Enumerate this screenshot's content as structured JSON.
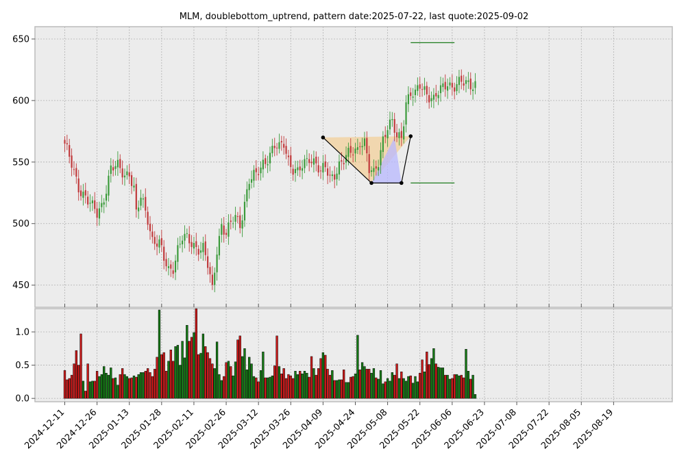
{
  "title": "MLM, doubblebottom_uptrend, pattern date:2025-07-22, last quote:2025-09-02",
  "chart_data": [
    {
      "type": "candlestick",
      "panel": "price",
      "title": "MLM, doublebottom_uptrend, pattern date:2025-07-22, last quote:2025-09-02",
      "ylim": [
        432,
        660
      ],
      "yticks": [
        450,
        500,
        550,
        600,
        650
      ],
      "grid": true,
      "x_tick_labels": [
        "2024-12-11",
        "2024-12-26",
        "2025-01-13",
        "2025-01-28",
        "2025-02-11",
        "2025-02-26",
        "2025-03-12",
        "2025-03-26",
        "2025-04-09",
        "2025-04-24",
        "2025-05-08",
        "2025-05-22",
        "2025-06-06",
        "2025-06-23",
        "2025-07-08",
        "2025-07-22",
        "2025-08-05",
        "2025-08-19"
      ],
      "anchor_closes": [
        [
          0,
          565
        ],
        [
          4,
          540
        ],
        [
          6,
          530
        ],
        [
          9,
          523
        ],
        [
          12,
          512
        ],
        [
          14,
          507
        ],
        [
          16,
          515
        ],
        [
          18,
          530
        ],
        [
          20,
          545
        ],
        [
          23,
          545
        ],
        [
          26,
          540
        ],
        [
          28,
          543
        ],
        [
          30,
          528
        ],
        [
          31,
          507
        ],
        [
          33,
          520
        ],
        [
          36,
          505
        ],
        [
          38,
          488
        ],
        [
          41,
          483
        ],
        [
          43,
          470
        ],
        [
          45,
          462
        ],
        [
          47,
          466
        ],
        [
          49,
          480
        ],
        [
          51,
          488
        ],
        [
          54,
          485
        ],
        [
          57,
          482
        ],
        [
          60,
          480
        ],
        [
          62,
          465
        ],
        [
          64,
          445
        ],
        [
          66,
          480
        ],
        [
          68,
          500
        ],
        [
          70,
          492
        ],
        [
          72,
          498
        ],
        [
          74,
          505
        ],
        [
          76,
          500
        ],
        [
          78,
          518
        ],
        [
          80,
          535
        ],
        [
          83,
          538
        ],
        [
          86,
          550
        ],
        [
          89,
          557
        ],
        [
          91,
          562
        ],
        [
          93,
          560
        ],
        [
          95,
          566
        ],
        [
          97,
          553
        ],
        [
          99,
          545
        ],
        [
          101,
          540
        ],
        [
          104,
          548
        ],
        [
          106,
          555
        ],
        [
          109,
          550
        ],
        [
          111,
          540
        ],
        [
          113,
          545
        ],
        [
          115,
          537
        ],
        [
          117,
          542
        ],
        [
          119,
          548
        ],
        [
          121,
          550
        ],
        [
          123,
          555
        ],
        [
          125,
          560
        ],
        [
          127,
          562
        ],
        [
          128,
          568
        ],
        [
          130,
          565
        ],
        [
          132,
          542
        ],
        [
          134,
          540
        ],
        [
          136,
          552
        ],
        [
          138,
          570
        ],
        [
          140,
          578
        ],
        [
          142,
          580
        ],
        [
          144,
          570
        ],
        [
          146,
          572
        ],
        [
          148,
          600
        ],
        [
          150,
          605
        ],
        [
          152,
          603
        ],
        [
          154,
          612
        ],
        [
          156,
          610
        ],
        [
          158,
          605
        ],
        [
          160,
          600
        ],
        [
          162,
          605
        ],
        [
          164,
          610
        ],
        [
          166,
          616
        ],
        [
          168,
          612
        ]
      ],
      "pattern": {
        "name": "doublebottom_uptrend",
        "points": [
          {
            "date_index": 112,
            "price": 570
          },
          {
            "date_index": 133,
            "price": 533
          },
          {
            "date_index": 146,
            "price": 533
          },
          {
            "date_index": 150,
            "price": 571
          }
        ],
        "levels": [
          647,
          533
        ]
      }
    },
    {
      "type": "bar",
      "panel": "volume",
      "ylim": [
        -0.05,
        1.35
      ],
      "yticks": [
        0.0,
        0.5,
        1.0
      ],
      "grid": true,
      "values": [
        0.42,
        0.28,
        0.3,
        0.35,
        0.52,
        0.72,
        0.5,
        0.97,
        0.26,
        0.11,
        0.52,
        0.25,
        0.26,
        0.26,
        0.41,
        0.33,
        0.36,
        0.48,
        0.38,
        0.35,
        0.46,
        0.3,
        0.31,
        0.2,
        0.36,
        0.45,
        0.36,
        0.33,
        0.3,
        0.31,
        0.34,
        0.32,
        0.36,
        0.39,
        0.39,
        0.41,
        0.45,
        0.39,
        0.33,
        0.44,
        0.62,
        1.33,
        0.66,
        0.69,
        0.41,
        0.56,
        0.73,
        0.56,
        0.78,
        0.8,
        0.5,
        0.86,
        0.61,
        1.1,
        0.86,
        0.92,
        0.99,
        1.35,
        0.66,
        0.68,
        0.97,
        0.78,
        0.69,
        0.6,
        0.52,
        0.45,
        0.85,
        0.36,
        0.27,
        0.33,
        0.54,
        0.56,
        0.48,
        0.34,
        0.55,
        0.88,
        0.94,
        0.63,
        0.75,
        0.43,
        0.62,
        0.52,
        0.33,
        0.31,
        0.25,
        0.42,
        0.7,
        0.31,
        0.31,
        0.32,
        0.34,
        0.49,
        0.94,
        0.48,
        0.37,
        0.45,
        0.3,
        0.36,
        0.34,
        0.3,
        0.41,
        0.36,
        0.41,
        0.37,
        0.41,
        0.38,
        0.32,
        0.63,
        0.45,
        0.35,
        0.45,
        0.6,
        0.69,
        0.65,
        0.44,
        0.35,
        0.42,
        0.27,
        0.27,
        0.28,
        0.28,
        0.43,
        0.24,
        0.24,
        0.32,
        0.33,
        0.37,
        0.95,
        0.43,
        0.54,
        0.48,
        0.44,
        0.44,
        0.38,
        0.45,
        0.31,
        0.29,
        0.42,
        0.22,
        0.25,
        0.3,
        0.26,
        0.39,
        0.35,
        0.52,
        0.3,
        0.4,
        0.3,
        0.26,
        0.33,
        0.34,
        0.23,
        0.33,
        0.25,
        0.38,
        0.58,
        0.4,
        0.7,
        0.51,
        0.6,
        0.75,
        0.52,
        0.47,
        0.46,
        0.46,
        0.35,
        0.35,
        0.29,
        0.3,
        0.36,
        0.36,
        0.34,
        0.35,
        0.31,
        0.74,
        0.41,
        0.29,
        0.35,
        0.06
      ]
    }
  ]
}
